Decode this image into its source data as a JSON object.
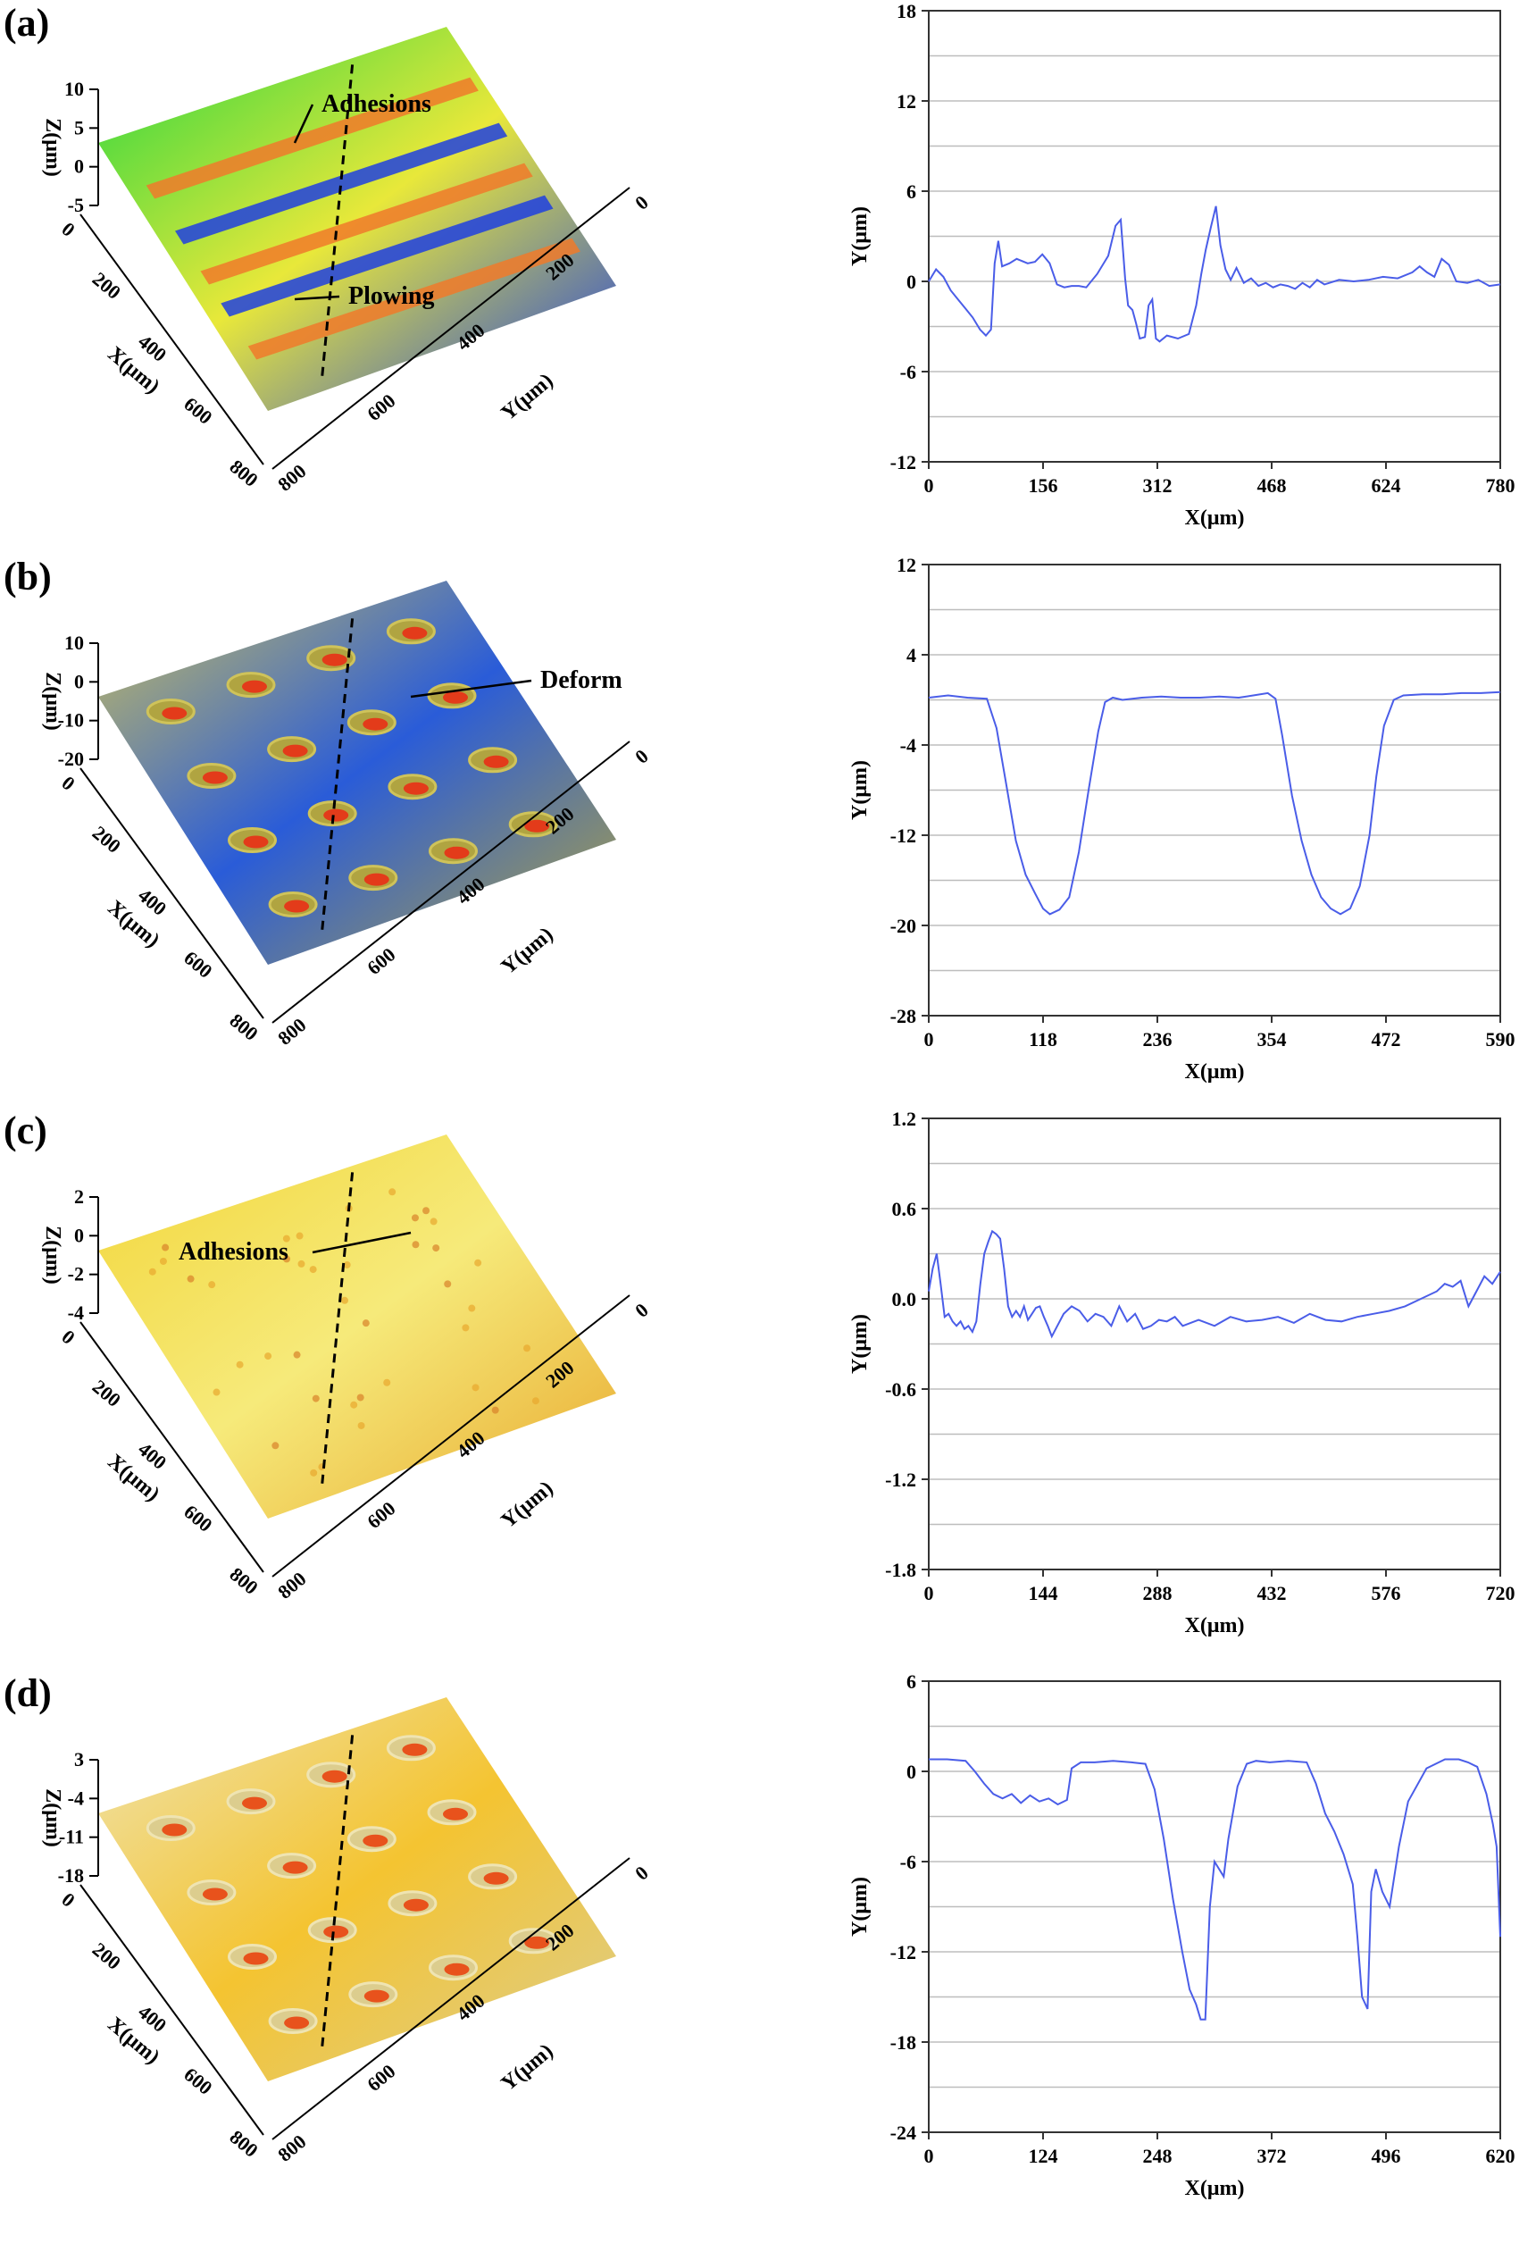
{
  "panels": [
    {
      "label": "(a)",
      "surface": {
        "z_label": "Z(μm)",
        "x_label": "X(μm)",
        "y_label": "Y(μm)",
        "z_ticks": [
          "10",
          "5",
          "0",
          "-5"
        ],
        "x_ticks": [
          "0",
          "200",
          "400",
          "600",
          "800"
        ],
        "y_ticks": [
          "0",
          "200",
          "400",
          "600",
          "800"
        ],
        "annotations": [
          "Adhesions",
          "Plowing"
        ],
        "palette": [
          "#22d640",
          "#1f3fe0",
          "#f07a2a",
          "#e8e83a"
        ]
      },
      "profile_ref": 0
    },
    {
      "label": "(b)",
      "surface": {
        "z_label": "Z(μm)",
        "x_label": "X(μm)",
        "y_label": "Y(μm)",
        "z_ticks": [
          "10",
          "0",
          "-10",
          "-20"
        ],
        "x_ticks": [
          "0",
          "200",
          "400",
          "600",
          "800"
        ],
        "y_ticks": [
          "0",
          "200",
          "400",
          "600",
          "800"
        ],
        "annotations": [
          "Deform"
        ],
        "palette": [
          "#cfc35a",
          "#b0a441",
          "#e33b1a",
          "#2a5cd8"
        ]
      },
      "profile_ref": 1
    },
    {
      "label": "(c)",
      "surface": {
        "z_label": "Z(μm)",
        "x_label": "X(μm)",
        "y_label": "Y(μm)",
        "z_ticks": [
          "2",
          "0",
          "-2",
          "-4"
        ],
        "x_ticks": [
          "0",
          "200",
          "400",
          "600",
          "800"
        ],
        "y_ticks": [
          "0",
          "200",
          "400",
          "600",
          "800"
        ],
        "annotations": [
          "Adhesions"
        ],
        "palette": [
          "#f2d63a",
          "#e8a82e",
          "#d9822a",
          "#f6ea7a"
        ]
      },
      "profile_ref": 2
    },
    {
      "label": "(d)",
      "surface": {
        "z_label": "Z(μm)",
        "x_label": "X(μm)",
        "y_label": "Y(μm)",
        "z_ticks": [
          "3",
          "-4",
          "-11",
          "-18"
        ],
        "x_ticks": [
          "0",
          "200",
          "400",
          "600",
          "800"
        ],
        "y_ticks": [
          "0",
          "200",
          "400",
          "600",
          "800"
        ],
        "annotations": [],
        "palette": [
          "#efe4b2",
          "#dccd8e",
          "#e8521c",
          "#f4c431"
        ]
      },
      "profile_ref": 3
    }
  ],
  "chart_data": [
    {
      "type": "line",
      "xlabel": "X(μm)",
      "ylabel": "Y(μm)",
      "xlim": [
        0,
        780
      ],
      "ylim": [
        -12,
        18
      ],
      "xticks": [
        0,
        156,
        312,
        468,
        624,
        780
      ],
      "yticks": [
        -12,
        -6,
        0,
        6,
        12,
        18
      ],
      "grid": true,
      "line_color": "#4a5de8",
      "series": [
        {
          "x": [
            0,
            10,
            20,
            30,
            40,
            50,
            60,
            70,
            78,
            85,
            90,
            95,
            100,
            110,
            120,
            135,
            145,
            155,
            165,
            175,
            185,
            195,
            205,
            215,
            230,
            245,
            255,
            262,
            268,
            272,
            278,
            283,
            288,
            295,
            300,
            305,
            310,
            315,
            325,
            340,
            355,
            365,
            372,
            378,
            385,
            392,
            398,
            405,
            412,
            420,
            430,
            440,
            450,
            460,
            470,
            480,
            490,
            500,
            510,
            520,
            530,
            540,
            560,
            580,
            600,
            620,
            640,
            660,
            670,
            680,
            690,
            700,
            710,
            720,
            735,
            750,
            765,
            780
          ],
          "y": [
            0,
            0.8,
            0.3,
            -0.6,
            -1.2,
            -1.8,
            -2.4,
            -3.2,
            -3.6,
            -3.2,
            1.2,
            2.7,
            1.0,
            1.2,
            1.5,
            1.2,
            1.3,
            1.8,
            1.2,
            -0.2,
            -0.4,
            -0.3,
            -0.3,
            -0.4,
            0.5,
            1.7,
            3.7,
            4.1,
            0.2,
            -1.6,
            -1.9,
            -2.8,
            -3.8,
            -3.7,
            -1.6,
            -1.2,
            -3.8,
            -4.0,
            -3.6,
            -3.8,
            -3.5,
            -1.6,
            0.5,
            2.1,
            3.6,
            5.0,
            2.4,
            0.8,
            0.1,
            0.9,
            -0.1,
            0.2,
            -0.3,
            -0.1,
            -0.4,
            -0.2,
            -0.3,
            -0.5,
            -0.1,
            -0.4,
            0.1,
            -0.2,
            0.1,
            0.0,
            0.1,
            0.3,
            0.2,
            0.6,
            1.0,
            0.6,
            0.3,
            1.5,
            1.1,
            0.0,
            -0.1,
            0.1,
            -0.3,
            -0.2
          ]
        }
      ]
    },
    {
      "type": "line",
      "xlabel": "X(μm)",
      "ylabel": "Y(μm)",
      "xlim": [
        0,
        590
      ],
      "ylim": [
        -28,
        12
      ],
      "xticks": [
        0,
        118,
        236,
        354,
        472,
        590
      ],
      "yticks": [
        -28,
        -20,
        -12,
        -4,
        4,
        12
      ],
      "grid": true,
      "line_color": "#4a5de8",
      "series": [
        {
          "x": [
            0,
            20,
            40,
            60,
            70,
            80,
            90,
            100,
            110,
            118,
            125,
            135,
            145,
            155,
            165,
            175,
            182,
            190,
            200,
            220,
            240,
            260,
            280,
            300,
            320,
            335,
            350,
            358,
            365,
            375,
            385,
            395,
            405,
            415,
            425,
            435,
            445,
            455,
            462,
            470,
            480,
            490,
            510,
            530,
            550,
            570,
            590
          ],
          "y": [
            0.2,
            0.4,
            0.2,
            0.1,
            -2.5,
            -7.5,
            -12.5,
            -15.5,
            -17.2,
            -18.5,
            -19.0,
            -18.6,
            -17.5,
            -13.5,
            -8.0,
            -2.8,
            -0.2,
            0.2,
            0.0,
            0.2,
            0.3,
            0.2,
            0.2,
            0.3,
            0.2,
            0.4,
            0.6,
            0.1,
            -3.2,
            -8.5,
            -12.5,
            -15.5,
            -17.5,
            -18.5,
            -19.0,
            -18.5,
            -16.5,
            -12.0,
            -6.8,
            -2.3,
            0.0,
            0.4,
            0.5,
            0.5,
            0.6,
            0.6,
            0.7
          ]
        }
      ]
    },
    {
      "type": "line",
      "xlabel": "X(μm)",
      "ylabel": "Y(μm)",
      "xlim": [
        0,
        720
      ],
      "ylim": [
        -1.8,
        1.2
      ],
      "xticks": [
        0,
        144,
        288,
        432,
        576,
        720
      ],
      "yticks": [
        -1.8,
        -1.2,
        -0.6,
        0.0,
        0.6,
        1.2
      ],
      "grid": true,
      "line_color": "#4a5de8",
      "series": [
        {
          "x": [
            0,
            5,
            10,
            15,
            20,
            25,
            30,
            35,
            40,
            45,
            50,
            55,
            60,
            65,
            70,
            75,
            80,
            85,
            90,
            95,
            100,
            105,
            110,
            115,
            120,
            125,
            130,
            135,
            140,
            145,
            150,
            155,
            160,
            170,
            180,
            190,
            200,
            210,
            220,
            230,
            240,
            250,
            260,
            270,
            280,
            290,
            300,
            310,
            320,
            340,
            360,
            380,
            400,
            420,
            440,
            460,
            480,
            500,
            520,
            540,
            560,
            580,
            600,
            620,
            640,
            650,
            660,
            670,
            680,
            690,
            700,
            710,
            720
          ],
          "y": [
            0.05,
            0.2,
            0.3,
            0.1,
            -0.12,
            -0.1,
            -0.15,
            -0.18,
            -0.15,
            -0.2,
            -0.18,
            -0.22,
            -0.15,
            0.1,
            0.3,
            0.38,
            0.45,
            0.43,
            0.4,
            0.2,
            -0.05,
            -0.12,
            -0.08,
            -0.12,
            -0.05,
            -0.14,
            -0.1,
            -0.06,
            -0.05,
            -0.12,
            -0.18,
            -0.25,
            -0.2,
            -0.1,
            -0.05,
            -0.08,
            -0.15,
            -0.1,
            -0.12,
            -0.18,
            -0.05,
            -0.15,
            -0.1,
            -0.2,
            -0.18,
            -0.14,
            -0.15,
            -0.12,
            -0.18,
            -0.14,
            -0.18,
            -0.12,
            -0.15,
            -0.14,
            -0.12,
            -0.16,
            -0.1,
            -0.14,
            -0.15,
            -0.12,
            -0.1,
            -0.08,
            -0.05,
            0.0,
            0.05,
            0.1,
            0.08,
            0.12,
            -0.05,
            0.05,
            0.15,
            0.1,
            0.18
          ]
        }
      ]
    },
    {
      "type": "line",
      "xlabel": "X(μm)",
      "ylabel": "Y(μm)",
      "xlim": [
        0,
        620
      ],
      "ylim": [
        -24,
        6
      ],
      "xticks": [
        0,
        124,
        248,
        372,
        496,
        620
      ],
      "yticks": [
        -24,
        -18,
        -12,
        -6,
        0,
        6
      ],
      "grid": true,
      "line_color": "#4a5de8",
      "series": [
        {
          "x": [
            0,
            20,
            40,
            50,
            60,
            70,
            80,
            90,
            100,
            110,
            120,
            130,
            140,
            150,
            155,
            165,
            180,
            200,
            220,
            235,
            245,
            255,
            265,
            275,
            283,
            290,
            295,
            300,
            305,
            310,
            320,
            325,
            335,
            345,
            355,
            370,
            390,
            410,
            420,
            430,
            440,
            450,
            460,
            465,
            470,
            476,
            480,
            485,
            492,
            500,
            510,
            520,
            540,
            560,
            575,
            585,
            595,
            605,
            612,
            616,
            620
          ],
          "y": [
            0.8,
            0.8,
            0.7,
            0.0,
            -0.8,
            -1.5,
            -1.8,
            -1.5,
            -2.1,
            -1.6,
            -2.0,
            -1.8,
            -2.2,
            -1.9,
            0.2,
            0.6,
            0.6,
            0.7,
            0.6,
            0.5,
            -1.2,
            -4.5,
            -8.5,
            -12.0,
            -14.5,
            -15.5,
            -16.5,
            -16.5,
            -9.0,
            -6.0,
            -7.0,
            -4.5,
            -1.0,
            0.5,
            0.7,
            0.6,
            0.7,
            0.6,
            -0.8,
            -2.8,
            -4.0,
            -5.5,
            -7.5,
            -11.0,
            -15.0,
            -15.8,
            -8.0,
            -6.5,
            -8.0,
            -9.0,
            -5.0,
            -2.0,
            0.2,
            0.8,
            0.8,
            0.6,
            0.3,
            -1.5,
            -3.5,
            -5.0,
            -11.0
          ]
        }
      ]
    }
  ]
}
